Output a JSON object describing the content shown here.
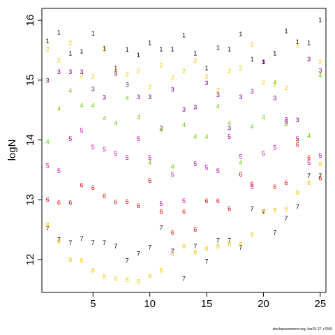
{
  "chart_data": {
    "type": "scatter",
    "title": "",
    "xlabel": "",
    "ylabel": "logN",
    "xlim": [
      0.5,
      25.5
    ],
    "ylim": [
      11.45,
      16.2
    ],
    "x_ticks": [
      5,
      10,
      15,
      20,
      25
    ],
    "y_ticks": [
      12,
      13,
      14,
      15,
      16
    ],
    "grid": false,
    "legend": "none",
    "colors": {
      "1": "#000000",
      "2": "#f5c400",
      "3": "#6a0085",
      "4": "#6ec800",
      "5": "#c800a8",
      "6": "#dc0000",
      "7": "#000000",
      "8": "#f5c400"
    },
    "series": [
      {
        "label": "1",
        "x": [
          1,
          2,
          3,
          4,
          5,
          6,
          7,
          8,
          9,
          10,
          11,
          12,
          13,
          14,
          15,
          16,
          17,
          18,
          19,
          20,
          21,
          22,
          23,
          24,
          25
        ],
        "y": [
          15.65,
          15.8,
          15.45,
          15.48,
          15.78,
          15.53,
          15.2,
          15.51,
          15.42,
          15.62,
          15.52,
          15.52,
          15.75,
          15.45,
          15.2,
          15.54,
          15.52,
          15.77,
          15.35,
          15.3,
          15.45,
          15.82,
          15.64,
          15.62,
          16.0
        ]
      },
      {
        "label": "2",
        "x": [
          1,
          2,
          3,
          4,
          5,
          6,
          7,
          8,
          9,
          10,
          11,
          12,
          13,
          14,
          15,
          16,
          17,
          18,
          19,
          20,
          21,
          22,
          23,
          24,
          25
        ],
        "y": [
          15.52,
          15.33,
          15.62,
          15.08,
          15.06,
          15.52,
          15.15,
          15.1,
          15.15,
          14.88,
          15.25,
          15.04,
          15.15,
          15.33,
          15.06,
          14.83,
          15.15,
          15.2,
          15.6,
          14.96,
          14.92,
          14.87,
          15.58,
          15.35,
          15.3
        ]
      },
      {
        "label": "3",
        "x": [
          1,
          2,
          3,
          4,
          5,
          6,
          7,
          8,
          9,
          10,
          11,
          12,
          13,
          14,
          15,
          16,
          17,
          18,
          19,
          20,
          21,
          22,
          23,
          24,
          25
        ],
        "y": [
          14.99,
          15.14,
          15.14,
          15.14,
          14.85,
          14.71,
          15.11,
          14.92,
          14.72,
          14.72,
          14.2,
          14.84,
          14.51,
          14.55,
          14.95,
          14.75,
          14.2,
          14.72,
          14.81,
          15.3,
          14.7,
          14.34,
          14.33,
          15.35,
          15.16
        ]
      },
      {
        "label": "4",
        "x": [
          1,
          2,
          3,
          4,
          5,
          6,
          7,
          8,
          9,
          10,
          11,
          12,
          13,
          14,
          15,
          16,
          17,
          18,
          19,
          20,
          21,
          22,
          23,
          24,
          25
        ],
        "y": [
          13.97,
          14.52,
          14.82,
          14.58,
          14.58,
          14.36,
          14.28,
          14.7,
          14.38,
          13.62,
          14.17,
          13.55,
          14.25,
          14.05,
          14.05,
          14.56,
          14.28,
          13.62,
          14.22,
          14.38,
          14.96,
          14.26,
          13.98,
          14.07,
          15.08
        ]
      },
      {
        "label": "5",
        "x": [
          1,
          2,
          3,
          4,
          5,
          6,
          7,
          8,
          9,
          10,
          11,
          12,
          13,
          14,
          15,
          16,
          17,
          18,
          19,
          20,
          21,
          22,
          23,
          24,
          25
        ],
        "y": [
          13.57,
          13.48,
          14.02,
          14.16,
          13.88,
          13.84,
          13.77,
          13.7,
          14.02,
          13.7,
          12.93,
          13.42,
          12.98,
          13.6,
          13.54,
          13.48,
          14.05,
          13.72,
          13.21,
          13.77,
          13.87,
          14.3,
          14.02,
          13.62,
          13.74
        ]
      },
      {
        "label": "6",
        "x": [
          1,
          2,
          3,
          4,
          5,
          6,
          7,
          8,
          9,
          10,
          11,
          12,
          13,
          14,
          15,
          16,
          17,
          18,
          19,
          20,
          21,
          22,
          23,
          24,
          25
        ],
        "y": [
          13.0,
          12.95,
          12.95,
          13.24,
          13.2,
          13.06,
          12.96,
          12.97,
          12.9,
          13.32,
          12.8,
          12.45,
          12.8,
          12.5,
          12.98,
          12.98,
          12.85,
          13.42,
          13.26,
          12.8,
          13.21,
          13.28,
          13.92,
          13.7,
          13.36
        ]
      },
      {
        "label": "7",
        "x": [
          1,
          2,
          3,
          4,
          5,
          6,
          7,
          8,
          9,
          10,
          11,
          12,
          13,
          14,
          15,
          16,
          17,
          18,
          19,
          20,
          21,
          22,
          23,
          24,
          25
        ],
        "y": [
          12.52,
          12.33,
          12.28,
          12.35,
          12.28,
          12.28,
          12.22,
          11.98,
          12.1,
          12.2,
          12.53,
          12.14,
          11.68,
          12.22,
          11.97,
          12.32,
          12.32,
          12.2,
          12.85,
          12.8,
          12.45,
          12.69,
          12.88,
          13.4,
          13.4
        ]
      },
      {
        "label": "8",
        "x": [
          1,
          2,
          3,
          4,
          5,
          6,
          7,
          8,
          9,
          10,
          11,
          12,
          13,
          14,
          15,
          16,
          17,
          18,
          19,
          20,
          21,
          22,
          23,
          24,
          25
        ],
        "y": [
          12.58,
          12.3,
          12.0,
          11.98,
          11.82,
          11.71,
          11.68,
          11.66,
          11.63,
          11.72,
          11.82,
          12.1,
          12.22,
          12.12,
          12.18,
          12.22,
          12.26,
          12.25,
          12.42,
          12.8,
          12.82,
          12.84,
          13.12,
          13.28,
          13.6
        ]
      }
    ],
    "footnote": "stockassessment.org, her25-27, r7600"
  }
}
